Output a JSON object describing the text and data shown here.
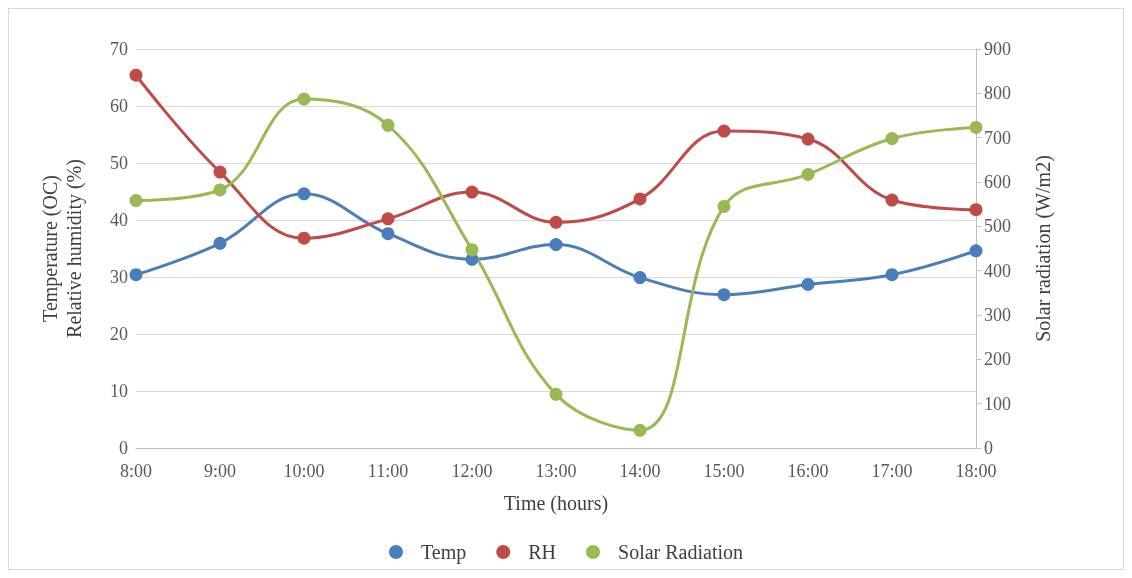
{
  "chart_data": {
    "type": "line",
    "xlabel": "Time (hours)",
    "ylabel": "Temperature (OC)\nRelative humidity (%)",
    "y2label": "Solar radiation (W/m2)",
    "categories": [
      "8:00",
      "9:00",
      "10:00",
      "11:00",
      "12:00",
      "13:00",
      "14:00",
      "15:00",
      "16:00",
      "17:00",
      "18:00"
    ],
    "series": [
      {
        "name": "Temp",
        "color": "#4a7ebb",
        "values": [
          30.4,
          35.9,
          44.6,
          37.6,
          33.1,
          35.7,
          29.9,
          26.9,
          28.7,
          30.4,
          34.6
        ]
      },
      {
        "name": "RH",
        "color": "#be4b48",
        "values": [
          65.4,
          48.4,
          36.8,
          40.2,
          44.9,
          39.6,
          43.7,
          55.6,
          54.2,
          43.5,
          41.8
        ]
      },
      {
        "name": "Solar Radiation",
        "color": "#98b954",
        "axis": "y2",
        "values": [
          558,
          582,
          787,
          728,
          447,
          121,
          40,
          545,
          617,
          698,
          723
        ]
      }
    ],
    "ylim": [
      0,
      70
    ],
    "yticks": [
      0,
      10,
      20,
      30,
      40,
      50,
      60,
      70
    ],
    "y2lim": [
      0,
      900
    ],
    "y2ticks": [
      0,
      100,
      200,
      300,
      400,
      500,
      600,
      700,
      800,
      900
    ],
    "grid": "y",
    "legend": "bottom",
    "marker": "circle",
    "line_style": "solid"
  }
}
